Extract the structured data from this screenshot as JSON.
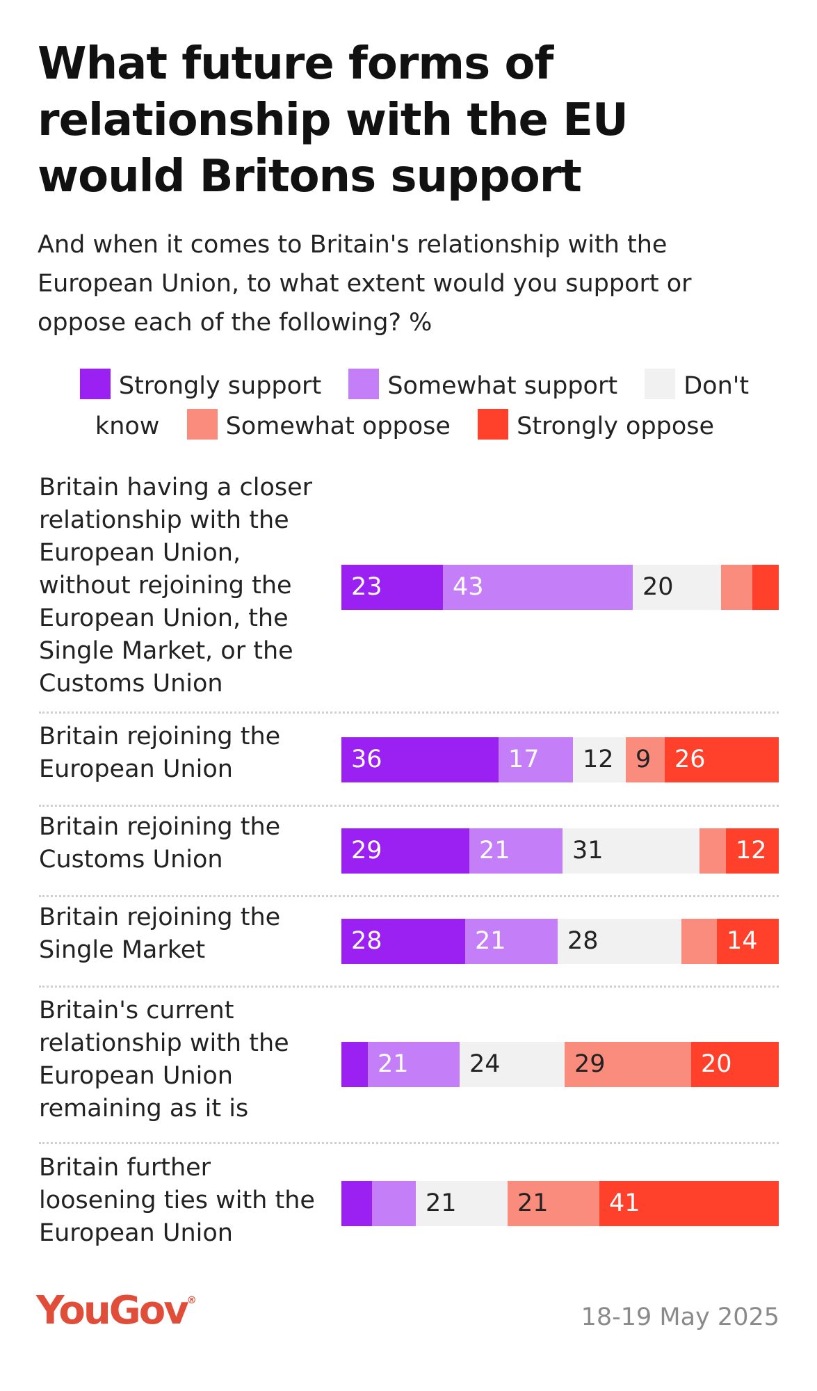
{
  "chart_data": {
    "type": "bar",
    "orientation": "horizontal-stacked",
    "title": "What future forms of relationship with the EU would Britons support",
    "subtitle": "And when it comes to Britain's relationship with the European Union, to what extent would you support or oppose each of the following? %",
    "legend_position": "top",
    "series": [
      {
        "name": "Strongly support",
        "color": "#9b21f2"
      },
      {
        "name": "Somewhat support",
        "color": "#c47ef7"
      },
      {
        "name": "Don't know",
        "color": "#f1f1f1"
      },
      {
        "name": "Somewhat oppose",
        "color": "#f98c7c"
      },
      {
        "name": "Strongly oppose",
        "color": "#ff412c"
      }
    ],
    "categories": [
      "Britain having a closer relationship with the European Union, without rejoining the European Union, the Single Market, or the Customs Union",
      "Britain rejoining the European Union",
      "Britain rejoining the Customs Union",
      "Britain rejoining the Single Market",
      "Britain's current relationship with the European Union remaining as it is",
      "Britain further loosening ties with the European Union"
    ],
    "values": [
      [
        23,
        43,
        20,
        7,
        6
      ],
      [
        36,
        17,
        12,
        9,
        26
      ],
      [
        29,
        21,
        31,
        6,
        12
      ],
      [
        28,
        21,
        28,
        8,
        14
      ],
      [
        6,
        21,
        24,
        29,
        20
      ],
      [
        7,
        10,
        21,
        21,
        41
      ]
    ],
    "labels": [
      [
        "23",
        "43",
        "20",
        "",
        ""
      ],
      [
        "36",
        "17",
        "12",
        "9",
        "26"
      ],
      [
        "29",
        "21",
        "31",
        "",
        "12"
      ],
      [
        "28",
        "21",
        "28",
        "",
        "14"
      ],
      [
        "",
        "21",
        "24",
        "29",
        "20"
      ],
      [
        "",
        "",
        "21",
        "21",
        "41"
      ]
    ],
    "xlim": [
      0,
      100
    ]
  },
  "brand": {
    "logo": "YouGov",
    "mark": "®"
  },
  "footer": {
    "date": "18-19 May 2025"
  }
}
